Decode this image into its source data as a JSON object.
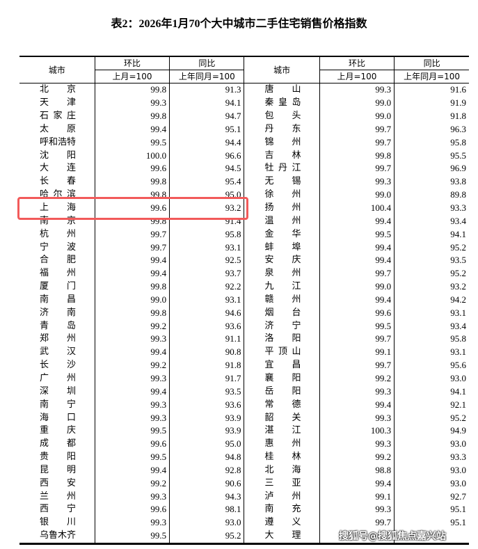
{
  "title": "表2：2026年1月70个大中城市二手住宅销售价格指数",
  "header": {
    "city": "城市",
    "mom": "环比",
    "mom_base": "上月=100",
    "yoy": "同比",
    "yoy_base": "上年同月=100"
  },
  "highlight_color": "#f25a5a",
  "left": [
    {
      "city": "北京",
      "mom": "99.8",
      "yoy": "91.3"
    },
    {
      "city": "天津",
      "mom": "99.3",
      "yoy": "94.1"
    },
    {
      "city": "石家庄",
      "mom": "99.8",
      "yoy": "94.7"
    },
    {
      "city": "太原",
      "mom": "99.4",
      "yoy": "95.1"
    },
    {
      "city": "呼和浩特",
      "mom": "99.5",
      "yoy": "94.4"
    },
    {
      "city": "沈阳",
      "mom": "100.0",
      "yoy": "96.6"
    },
    {
      "city": "大连",
      "mom": "99.6",
      "yoy": "94.5"
    },
    {
      "city": "长春",
      "mom": "99.8",
      "yoy": "95.4"
    },
    {
      "city": "哈尔滨",
      "mom": "99.8",
      "yoy": "95.0"
    },
    {
      "city": "上海",
      "mom": "99.6",
      "yoy": "93.2"
    },
    {
      "city": "南京",
      "mom": "99.8",
      "yoy": "91.4"
    },
    {
      "city": "杭州",
      "mom": "99.7",
      "yoy": "95.8"
    },
    {
      "city": "宁波",
      "mom": "99.7",
      "yoy": "93.1"
    },
    {
      "city": "合肥",
      "mom": "99.4",
      "yoy": "92.5"
    },
    {
      "city": "福州",
      "mom": "99.4",
      "yoy": "93.7"
    },
    {
      "city": "厦门",
      "mom": "99.8",
      "yoy": "92.2"
    },
    {
      "city": "南昌",
      "mom": "99.0",
      "yoy": "93.1"
    },
    {
      "city": "济南",
      "mom": "99.8",
      "yoy": "94.6"
    },
    {
      "city": "青岛",
      "mom": "99.2",
      "yoy": "93.6"
    },
    {
      "city": "郑州",
      "mom": "99.3",
      "yoy": "91.1"
    },
    {
      "city": "武汉",
      "mom": "99.4",
      "yoy": "90.8"
    },
    {
      "city": "长沙",
      "mom": "99.2",
      "yoy": "91.8"
    },
    {
      "city": "广州",
      "mom": "99.3",
      "yoy": "91.7"
    },
    {
      "city": "深圳",
      "mom": "99.4",
      "yoy": "93.5"
    },
    {
      "city": "南宁",
      "mom": "99.3",
      "yoy": "93.6"
    },
    {
      "city": "海口",
      "mom": "99.3",
      "yoy": "93.9"
    },
    {
      "city": "重庆",
      "mom": "99.5",
      "yoy": "93.9"
    },
    {
      "city": "成都",
      "mom": "99.6",
      "yoy": "95.0"
    },
    {
      "city": "贵阳",
      "mom": "99.5",
      "yoy": "94.8"
    },
    {
      "city": "昆明",
      "mom": "99.4",
      "yoy": "92.8"
    },
    {
      "city": "西安",
      "mom": "99.2",
      "yoy": "90.6"
    },
    {
      "city": "兰州",
      "mom": "99.3",
      "yoy": "94.3"
    },
    {
      "city": "西宁",
      "mom": "99.6",
      "yoy": "98.1"
    },
    {
      "city": "银川",
      "mom": "99.3",
      "yoy": "93.0"
    },
    {
      "city": "乌鲁木齐",
      "mom": "99.5",
      "yoy": "95.2"
    }
  ],
  "right": [
    {
      "city": "唐山",
      "mom": "99.3",
      "yoy": "91.6"
    },
    {
      "city": "秦皇岛",
      "mom": "99.0",
      "yoy": "91.9"
    },
    {
      "city": "包头",
      "mom": "99.0",
      "yoy": "91.8"
    },
    {
      "city": "丹东",
      "mom": "99.7",
      "yoy": "96.3"
    },
    {
      "city": "锦州",
      "mom": "99.7",
      "yoy": "95.8"
    },
    {
      "city": "吉林",
      "mom": "99.8",
      "yoy": "95.5"
    },
    {
      "city": "牡丹江",
      "mom": "99.7",
      "yoy": "96.9"
    },
    {
      "city": "无锡",
      "mom": "99.3",
      "yoy": "93.8"
    },
    {
      "city": "徐州",
      "mom": "99.0",
      "yoy": "89.8"
    },
    {
      "city": "扬州",
      "mom": "100.4",
      "yoy": "93.3"
    },
    {
      "city": "温州",
      "mom": "99.4",
      "yoy": "93.4"
    },
    {
      "city": "金华",
      "mom": "99.5",
      "yoy": "94.1"
    },
    {
      "city": "蚌埠",
      "mom": "99.4",
      "yoy": "95.2"
    },
    {
      "city": "安庆",
      "mom": "99.4",
      "yoy": "93.5"
    },
    {
      "city": "泉州",
      "mom": "99.7",
      "yoy": "95.2"
    },
    {
      "city": "九江",
      "mom": "99.0",
      "yoy": "93.2"
    },
    {
      "city": "赣州",
      "mom": "99.4",
      "yoy": "94.2"
    },
    {
      "city": "烟台",
      "mom": "99.6",
      "yoy": "93.1"
    },
    {
      "city": "济宁",
      "mom": "99.5",
      "yoy": "93.4"
    },
    {
      "city": "洛阳",
      "mom": "99.7",
      "yoy": "95.8"
    },
    {
      "city": "平顶山",
      "mom": "99.1",
      "yoy": "93.1"
    },
    {
      "city": "宜昌",
      "mom": "99.7",
      "yoy": "95.6"
    },
    {
      "city": "襄阳",
      "mom": "99.2",
      "yoy": "93.0"
    },
    {
      "city": "岳阳",
      "mom": "99.3",
      "yoy": "94.1"
    },
    {
      "city": "常德",
      "mom": "99.4",
      "yoy": "92.1"
    },
    {
      "city": "韶关",
      "mom": "99.3",
      "yoy": "95.2"
    },
    {
      "city": "湛江",
      "mom": "100.3",
      "yoy": "94.9"
    },
    {
      "city": "惠州",
      "mom": "99.3",
      "yoy": "93.0"
    },
    {
      "city": "桂林",
      "mom": "99.2",
      "yoy": "93.3"
    },
    {
      "city": "北海",
      "mom": "98.8",
      "yoy": "93.0"
    },
    {
      "city": "三亚",
      "mom": "99.4",
      "yoy": "93.0"
    },
    {
      "city": "泸州",
      "mom": "99.1",
      "yoy": "92.7"
    },
    {
      "city": "南充",
      "mom": "99.3",
      "yoy": "95.1"
    },
    {
      "city": "遵义",
      "mom": "99.7",
      "yoy": "95.1"
    },
    {
      "city": "大理",
      "mom": "",
      "yoy": ""
    }
  ],
  "watermark": "搜狐号@搜狐焦点嘉兴站"
}
